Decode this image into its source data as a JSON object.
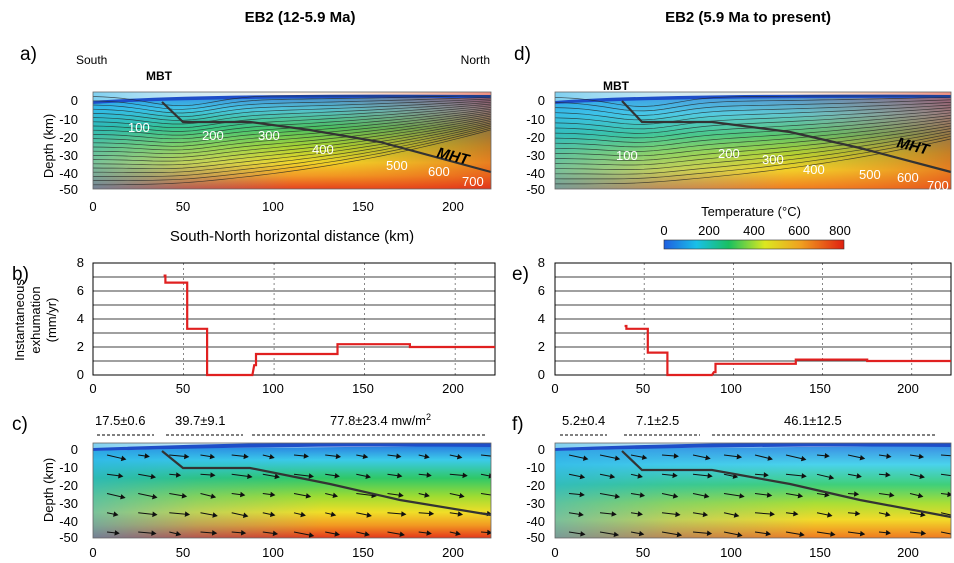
{
  "columns": [
    {
      "title": "EB2 (12-5.9 Ma)"
    },
    {
      "title": "EB2 (5.9 Ma to present)"
    }
  ],
  "panels": {
    "a": {
      "letter": "a)",
      "south": "South",
      "north": "North",
      "mbt": "MBT",
      "mht": "MHT",
      "isotherm_labels": [
        "100",
        "200",
        "300",
        "400",
        "500",
        "600",
        "700"
      ]
    },
    "b": {
      "letter": "b)"
    },
    "c": {
      "letter": "c)",
      "heat_flow": [
        "17.5±0.6",
        "39.7±9.1",
        "77.8±23.4 mw/m"
      ],
      "heat_flow_sup": "2"
    },
    "d": {
      "letter": "d)",
      "mbt": "MBT",
      "mht": "MHT",
      "isotherm_labels": [
        "100",
        "200",
        "300",
        "400",
        "500",
        "600",
        "700"
      ]
    },
    "e": {
      "letter": "e)"
    },
    "f": {
      "letter": "f)",
      "heat_flow": [
        "5.2±0.4",
        "7.1±2.5",
        "46.1±12.5"
      ]
    }
  },
  "axes": {
    "depth_label": "Depth (km)",
    "depth_ticks": [
      "0",
      "-10",
      "-20",
      "-30",
      "-40",
      "-50"
    ],
    "distance_ticks": [
      "0",
      "50",
      "100",
      "150",
      "200"
    ],
    "distance_label": "South-North horizontal distance (km)",
    "exhumation_label_1": "Instantaneous",
    "exhumation_label_2": "exhumation",
    "exhumation_label_3": "(mm/yr)",
    "exhumation_ticks": [
      "0",
      "2",
      "4",
      "6",
      "8"
    ]
  },
  "colorbar": {
    "title": "Temperature (°C)",
    "ticks": [
      "0",
      "200",
      "400",
      "600",
      "800"
    ],
    "colors": [
      "#1f5fe0",
      "#19c0e8",
      "#18c060",
      "#dce820",
      "#f0a020",
      "#e02010"
    ]
  },
  "chart_data": [
    {
      "type": "line",
      "title": "",
      "xlabel": "",
      "ylabel": "Instantaneous exhumation (mm/yr)",
      "xlim": [
        0,
        222
      ],
      "ylim": [
        0,
        8
      ],
      "series": [
        {
          "x": [
            39,
            40,
            40,
            52,
            52,
            63,
            63,
            88,
            89,
            90,
            90,
            135,
            135,
            175,
            175,
            222
          ],
          "y": [
            7.1,
            7.1,
            6.6,
            6.6,
            3.3,
            3.3,
            0,
            0,
            0.7,
            0.7,
            1.5,
            1.5,
            2.2,
            2.2,
            2.0,
            2.0
          ]
        }
      ],
      "line_color": "#e02020"
    },
    {
      "type": "line",
      "title": "",
      "xlabel": "",
      "ylabel": "",
      "xlim": [
        0,
        222
      ],
      "ylim": [
        0,
        8
      ],
      "series": [
        {
          "x": [
            39,
            40,
            40,
            52,
            52,
            63,
            63,
            88,
            89,
            90,
            90,
            135,
            135,
            175,
            175,
            222
          ],
          "y": [
            3.5,
            3.5,
            3.3,
            3.3,
            1.6,
            1.6,
            0,
            0,
            0.2,
            0.2,
            0.8,
            0.8,
            1.1,
            1.1,
            1.0,
            1.0
          ]
        }
      ],
      "line_color": "#e02020"
    }
  ]
}
